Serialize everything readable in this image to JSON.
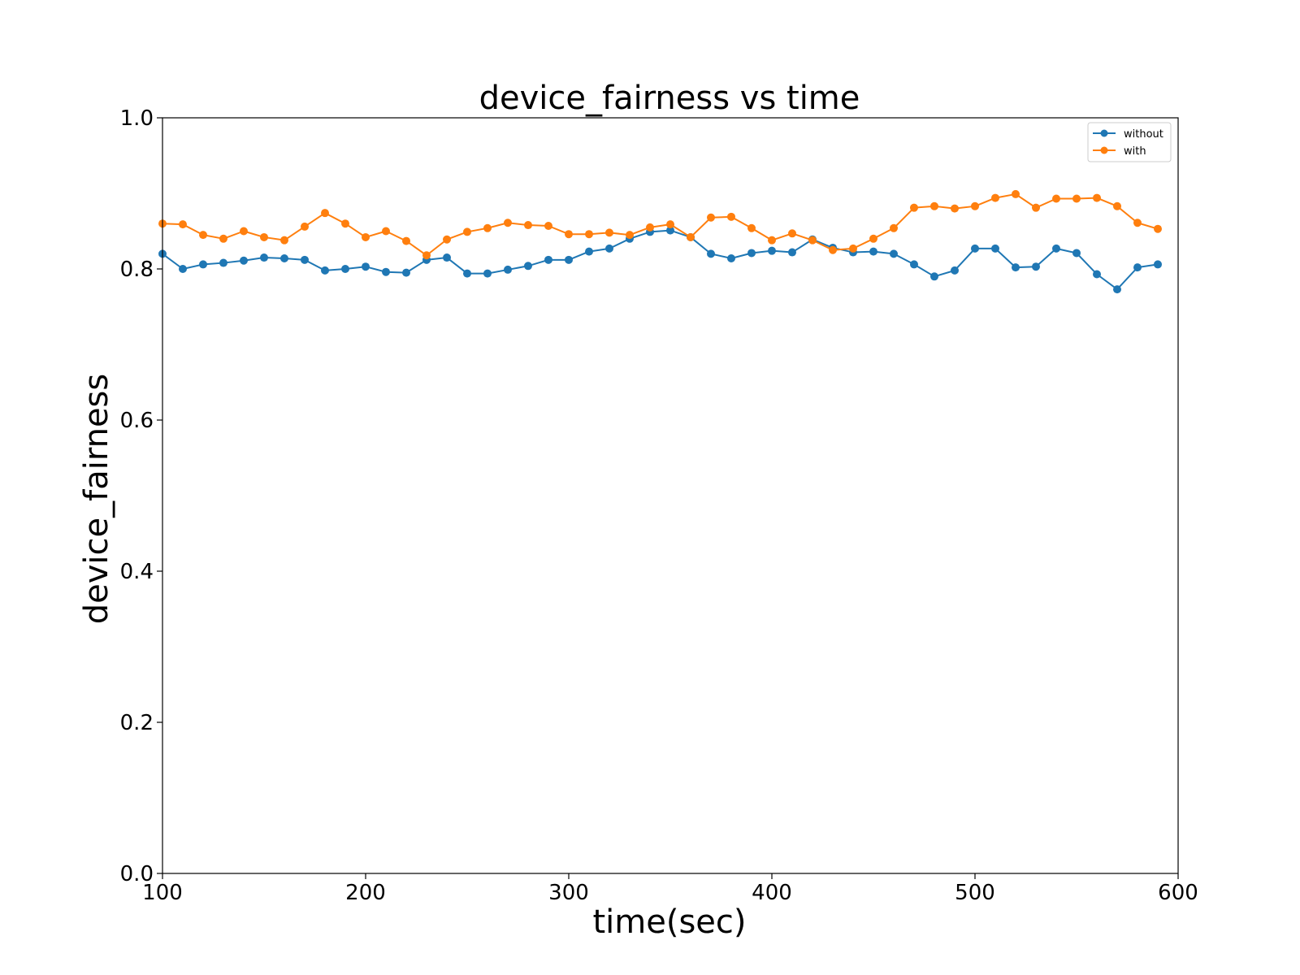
{
  "chart_data": {
    "type": "line",
    "title": "device_fairness vs time",
    "xlabel": "time(sec)",
    "ylabel": "device_fairness",
    "xlim": [
      100,
      600
    ],
    "ylim": [
      0.0,
      1.0
    ],
    "xticks": [
      100,
      200,
      300,
      400,
      500,
      600
    ],
    "yticks": [
      0.0,
      0.2,
      0.4,
      0.6,
      0.8,
      1.0
    ],
    "xtick_labels": [
      "100",
      "200",
      "300",
      "400",
      "500",
      "600"
    ],
    "ytick_labels": [
      "0.0",
      "0.2",
      "0.4",
      "0.6",
      "0.8",
      "1.0"
    ],
    "grid": false,
    "legend_position": "top-right",
    "x": [
      100,
      110,
      120,
      130,
      140,
      150,
      160,
      170,
      180,
      190,
      200,
      210,
      220,
      230,
      240,
      250,
      260,
      270,
      280,
      290,
      300,
      310,
      320,
      330,
      340,
      350,
      360,
      370,
      380,
      390,
      400,
      410,
      420,
      430,
      440,
      450,
      460,
      470,
      480,
      490,
      500,
      510,
      520,
      530,
      540,
      550,
      560,
      570,
      580,
      590
    ],
    "series": [
      {
        "name": "without",
        "color": "#1f77b4",
        "marker": "circle",
        "values": [
          0.82,
          0.8,
          0.806,
          0.808,
          0.811,
          0.815,
          0.814,
          0.812,
          0.798,
          0.8,
          0.803,
          0.796,
          0.795,
          0.812,
          0.815,
          0.794,
          0.794,
          0.799,
          0.804,
          0.812,
          0.812,
          0.823,
          0.827,
          0.84,
          0.849,
          0.851,
          0.842,
          0.82,
          0.814,
          0.821,
          0.824,
          0.822,
          0.839,
          0.828,
          0.822,
          0.823,
          0.82,
          0.806,
          0.79,
          0.798,
          0.827,
          0.827,
          0.802,
          0.803,
          0.827,
          0.821,
          0.793,
          0.773,
          0.802,
          0.806
        ]
      },
      {
        "name": "with",
        "color": "#ff7f0e",
        "marker": "circle",
        "values": [
          0.86,
          0.859,
          0.845,
          0.84,
          0.85,
          0.842,
          0.838,
          0.856,
          0.874,
          0.86,
          0.842,
          0.85,
          0.837,
          0.818,
          0.839,
          0.849,
          0.854,
          0.861,
          0.858,
          0.857,
          0.846,
          0.846,
          0.848,
          0.845,
          0.855,
          0.859,
          0.842,
          0.868,
          0.869,
          0.854,
          0.838,
          0.847,
          0.838,
          0.825,
          0.827,
          0.84,
          0.854,
          0.881,
          0.883,
          0.88,
          0.883,
          0.894,
          0.899,
          0.881,
          0.893,
          0.893,
          0.894,
          0.883,
          0.861,
          0.853
        ]
      }
    ]
  }
}
